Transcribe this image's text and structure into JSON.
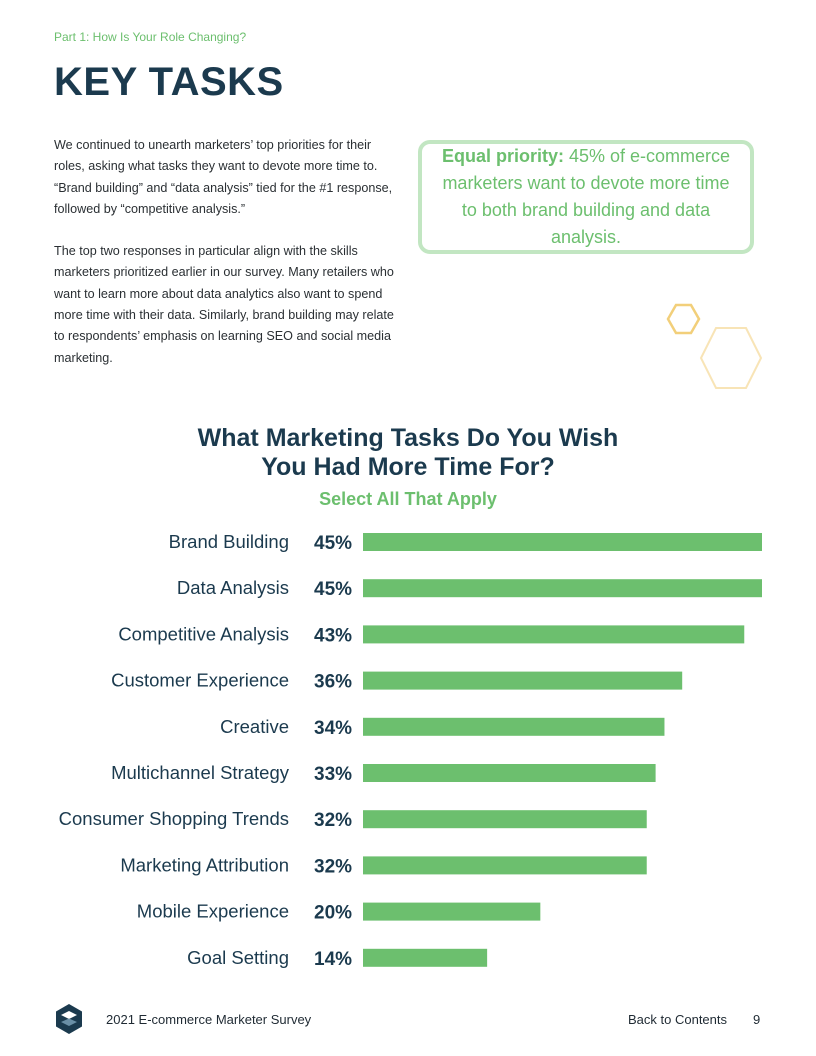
{
  "section_label": "Part 1: How Is Your Role Changing?",
  "page_title": "KEY TASKS",
  "paragraphs": [
    "We continued to unearth marketers’ top priorities for their roles, asking what tasks they want to devote more time to. “Brand building” and “data analysis” tied for the #1 response, followed by “competitive analysis.”",
    "The top two responses in particular align with the skills marketers prioritized earlier in our survey. Many retailers who want to learn more about data analytics also want to spend more time with their data. Similarly, brand building may relate to respondents’ emphasis on learning SEO and social media marketing."
  ],
  "callout": {
    "bold": "Equal priority:",
    "text": "45% of e-commerce marketers want to devote more time to both brand building and data analysis."
  },
  "chart_data": {
    "type": "bar",
    "orientation": "horizontal",
    "title": "What Marketing Tasks Do You Wish You Had More Time For?",
    "title_line1": "What Marketing Tasks Do You Wish",
    "title_line2": "You Had More Time For?",
    "subtitle": "Select All That Apply",
    "categories": [
      "Brand Building",
      "Data Analysis",
      "Competitive Analysis",
      "Customer Experience",
      "Creative",
      "Multichannel Strategy",
      "Consumer Shopping Trends",
      "Marketing Attribution",
      "Mobile Experience",
      "Goal Setting"
    ],
    "values": [
      45,
      45,
      43,
      36,
      34,
      33,
      32,
      32,
      20,
      14
    ],
    "value_labels": [
      "45%",
      "45%",
      "43%",
      "36%",
      "34%",
      "33%",
      "32%",
      "32%",
      "20%",
      "14%"
    ],
    "unit": "%",
    "xlim": [
      0,
      45
    ],
    "grid": false,
    "legend": "none",
    "bar_color": "#6cbf6e"
  },
  "colors": {
    "navy": "#1b3a4e",
    "green": "#6cbf6e",
    "light_green": "#c2e6c2",
    "hex_gold": "#f2cf7a",
    "hex_gold_light": "#f8e4b6"
  },
  "footer": {
    "logo_icon": "hexagon-logo-icon",
    "title": "2021 E-commerce Marketer Survey",
    "back_link": "Back to Contents",
    "page_number": "9"
  }
}
